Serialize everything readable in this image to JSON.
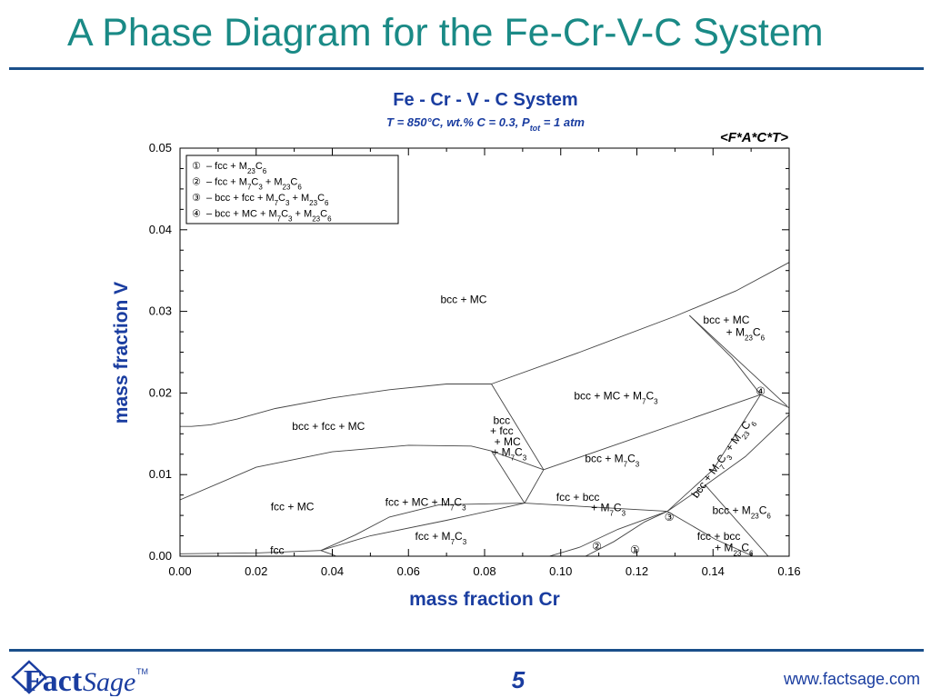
{
  "slide": {
    "title": "A Phase Diagram for the Fe-Cr-V-C System",
    "page_number": "5",
    "website": "www.factsage.com",
    "logo_text_fact": "Fact",
    "logo_text_sage": "Sage",
    "logo_tm": "TM"
  },
  "diagram": {
    "title": "Fe - Cr - V - C System",
    "subtitle_main": "T = 850°C, wt.% C = 0.3, P",
    "subtitle_sub": "tot",
    "subtitle_end": " = 1 atm",
    "database_tag": "<F*A*C*T>",
    "xlabel": "mass fraction Cr",
    "ylabel": "mass fraction V",
    "x_range": [
      0,
      0.16
    ],
    "y_range": [
      0,
      0.05
    ],
    "x_ticks": [
      "0.00",
      "0.02",
      "0.04",
      "0.06",
      "0.08",
      "0.10",
      "0.12",
      "0.14",
      "0.16"
    ],
    "y_ticks": [
      "0.00",
      "0.01",
      "0.02",
      "0.03",
      "0.04",
      "0.05"
    ],
    "legend": [
      {
        "mark": "①",
        "text": "– fcc + M23C6"
      },
      {
        "mark": "②",
        "text": "– fcc + M7C3 + M23C6"
      },
      {
        "mark": "③",
        "text": "– bcc + fcc + M7C3 + M23C6"
      },
      {
        "mark": "④",
        "text": "– bcc + MC + M7C3 + M23C6"
      }
    ],
    "region_labels": [
      {
        "text": "bcc + MC",
        "x": 0.0745,
        "y": 0.031
      },
      {
        "text": "bcc + MC",
        "x": 0.1435,
        "y": 0.0285
      },
      {
        "text": "+ M23C6",
        "x": 0.1485,
        "y": 0.027
      },
      {
        "text": "bcc + MC + M7C3",
        "x": 0.1145,
        "y": 0.0192
      },
      {
        "text": "bcc + fcc + MC",
        "x": 0.039,
        "y": 0.0155
      },
      {
        "text": "bcc",
        "x": 0.0845,
        "y": 0.0162
      },
      {
        "text": "+ fcc",
        "x": 0.0845,
        "y": 0.0149
      },
      {
        "text": "+ MC",
        "x": 0.086,
        "y": 0.0136
      },
      {
        "text": "+ M7C3",
        "x": 0.0865,
        "y": 0.0123
      },
      {
        "text": "bcc + M7C3",
        "x": 0.1135,
        "y": 0.0115
      },
      {
        "text": "fcc + MC",
        "x": 0.0295,
        "y": 0.0056
      },
      {
        "text": "fcc + MC + M7C3",
        "x": 0.0645,
        "y": 0.0062
      },
      {
        "text": "fcc + bcc",
        "x": 0.1045,
        "y": 0.0068
      },
      {
        "text": "+ M7C3",
        "x": 0.1125,
        "y": 0.0055
      },
      {
        "text": "bcc + M23C6",
        "x": 0.1475,
        "y": 0.0052
      },
      {
        "text": "fcc + M7C3",
        "x": 0.0685,
        "y": 0.002
      },
      {
        "text": "fcc + bcc",
        "x": 0.1415,
        "y": 0.002
      },
      {
        "text": "+ M23C6",
        "x": 0.1455,
        "y": 0.0006
      },
      {
        "text": "fcc",
        "x": 0.0255,
        "y": 0.0003
      }
    ],
    "rotated_label": {
      "text": "bcc + M7C3 + M23C6",
      "x": 0.1432,
      "y": 0.0118,
      "angle": -54
    },
    "region_marks": [
      {
        "mark": "④",
        "x": 0.1525,
        "y": 0.0202
      },
      {
        "mark": "③",
        "x": 0.1285,
        "y": 0.0048
      },
      {
        "mark": "②",
        "x": 0.1095,
        "y": 0.0012
      },
      {
        "mark": "①",
        "x": 0.1195,
        "y": 0.0008
      }
    ],
    "boundaries": [
      [
        [
          0,
          0.0159
        ],
        [
          0.003,
          0.0159
        ],
        [
          0.008,
          0.0161
        ],
        [
          0.015,
          0.0168
        ],
        [
          0.025,
          0.0181
        ],
        [
          0.04,
          0.0194
        ],
        [
          0.055,
          0.0204
        ],
        [
          0.07,
          0.0211
        ],
        [
          0.0818,
          0.0211
        ]
      ],
      [
        [
          0.0818,
          0.0211
        ],
        [
          0.105,
          0.025
        ],
        [
          0.13,
          0.0294
        ],
        [
          0.146,
          0.0325
        ],
        [
          0.16,
          0.036
        ]
      ],
      [
        [
          0.1338,
          0.0295
        ],
        [
          0.145,
          0.0243
        ],
        [
          0.1525,
          0.0198
        ]
      ],
      [
        [
          0.1338,
          0.0295
        ],
        [
          0.1595,
          0.0184
        ]
      ],
      [
        [
          0.0818,
          0.0211
        ],
        [
          0.0955,
          0.0106
        ]
      ],
      [
        [
          0.0955,
          0.0106
        ],
        [
          0.1525,
          0.0198
        ]
      ],
      [
        [
          0.1525,
          0.0198
        ],
        [
          0.16,
          0.0182
        ]
      ],
      [
        [
          0.1525,
          0.0198
        ],
        [
          0.14,
          0.0106
        ],
        [
          0.128,
          0.0055
        ]
      ],
      [
        [
          0.0,
          0.0069
        ],
        [
          0.02,
          0.0109
        ],
        [
          0.04,
          0.0128
        ],
        [
          0.06,
          0.0136
        ],
        [
          0.0765,
          0.0135
        ],
        [
          0.0818,
          0.0129
        ]
      ],
      [
        [
          0.0818,
          0.0129
        ],
        [
          0.0955,
          0.0106
        ]
      ],
      [
        [
          0.0818,
          0.0129
        ],
        [
          0.0905,
          0.0065
        ]
      ],
      [
        [
          0.0955,
          0.0106
        ],
        [
          0.0905,
          0.0065
        ]
      ],
      [
        [
          0.0905,
          0.0065
        ],
        [
          0.128,
          0.0055
        ]
      ],
      [
        [
          0.0905,
          0.0065
        ],
        [
          0.07,
          0.0044
        ],
        [
          0.05,
          0.0025
        ],
        [
          0.037,
          0.0007
        ]
      ],
      [
        [
          0.037,
          0.0007
        ],
        [
          0.046,
          0.0026
        ],
        [
          0.055,
          0.0048
        ],
        [
          0.068,
          0.0063
        ],
        [
          0.0905,
          0.0065
        ]
      ],
      [
        [
          0.0,
          0.0003
        ],
        [
          0.02,
          0.0004
        ],
        [
          0.037,
          0.0007
        ]
      ],
      [
        [
          0.037,
          0.0007
        ],
        [
          0.04,
          0.0002
        ],
        [
          0.041,
          0.0
        ]
      ],
      [
        [
          0.097,
          0.0
        ],
        [
          0.105,
          0.0011
        ],
        [
          0.115,
          0.0033
        ],
        [
          0.128,
          0.0055
        ]
      ],
      [
        [
          0.1065,
          0.0
        ],
        [
          0.114,
          0.0018
        ],
        [
          0.122,
          0.0042
        ],
        [
          0.128,
          0.0055
        ]
      ],
      [
        [
          0.128,
          0.0055
        ],
        [
          0.1405,
          0.0021
        ],
        [
          0.1505,
          0.0
        ]
      ],
      [
        [
          0.128,
          0.0055
        ],
        [
          0.138,
          0.0087
        ],
        [
          0.1485,
          0.0122
        ],
        [
          0.16,
          0.0173
        ]
      ],
      [
        [
          0.138,
          0.0087
        ],
        [
          0.1545,
          0.0
        ]
      ]
    ]
  }
}
